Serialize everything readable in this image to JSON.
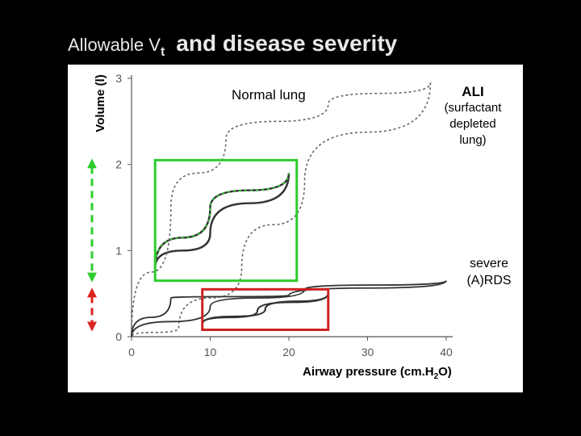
{
  "slide": {
    "title_part1": "Allowable V",
    "title_sub": "t",
    "title_part2": "and disease severity"
  },
  "chart_data": {
    "type": "line",
    "xlabel_main": "Airway pressure (cm.H",
    "xlabel_sub": "2",
    "xlabel_end": "O)",
    "ylabel": "Volume (l)",
    "xlim": [
      0,
      40
    ],
    "ylim": [
      0,
      3
    ],
    "x_ticks": [
      "0",
      "10",
      "20",
      "30",
      "40"
    ],
    "y_ticks": [
      "0",
      "1",
      "2",
      "3"
    ],
    "annotations": {
      "normal": "Normal lung",
      "ali_title": "ALI",
      "ali_line1": "(surfactant",
      "ali_line2": "depleted",
      "ali_line3": "lung)",
      "severe_line1": "severe",
      "severe_line2": "(A)RDS"
    },
    "loops": [
      {
        "name": "Normal lung",
        "inflation": [
          [
            3,
            0.8
          ],
          [
            10,
            1.5
          ],
          [
            20,
            1.9
          ]
        ],
        "deflation": [
          [
            20,
            1.9
          ],
          [
            10,
            1.2
          ],
          [
            3,
            0.8
          ]
        ]
      },
      {
        "name": "ALI (surfactant depleted lung)",
        "inflation": [
          [
            0,
            0
          ],
          [
            5,
            1.5
          ],
          [
            12,
            2.3
          ],
          [
            25,
            2.7
          ],
          [
            38,
            2.95
          ]
        ],
        "deflation": [
          [
            38,
            2.95
          ],
          [
            22,
            1.8
          ],
          [
            14,
            0.8
          ],
          [
            6,
            0.1
          ],
          [
            0,
            0
          ]
        ]
      },
      {
        "name": "severe (A)RDS",
        "inflation": [
          [
            0,
            0
          ],
          [
            10,
            0.35
          ],
          [
            22,
            0.55
          ],
          [
            40,
            0.65
          ]
        ],
        "deflation": [
          [
            40,
            0.65
          ],
          [
            20,
            0.48
          ],
          [
            5,
            0.45
          ],
          [
            0,
            0
          ]
        ]
      },
      {
        "name": "inner RDS loop",
        "inflation": [
          [
            9,
            0.15
          ],
          [
            16,
            0.3
          ],
          [
            25,
            0.5
          ]
        ],
        "deflation": [
          [
            25,
            0.5
          ],
          [
            17,
            0.32
          ],
          [
            9,
            0.15
          ]
        ]
      }
    ],
    "highlight_boxes": [
      {
        "name": "green-box",
        "color": "#2ecc2e",
        "x": [
          3,
          21
        ],
        "y": [
          0.65,
          2.05
        ]
      },
      {
        "name": "red-box",
        "color": "#cc2222",
        "x": [
          9,
          25
        ],
        "y": [
          0.08,
          0.55
        ]
      }
    ],
    "arrows": [
      {
        "name": "green-arrow",
        "color": "#2ecc2e",
        "y": [
          0.65,
          2.05
        ]
      },
      {
        "name": "red-arrow",
        "color": "#dd2222",
        "y": [
          0.08,
          0.55
        ]
      }
    ]
  }
}
